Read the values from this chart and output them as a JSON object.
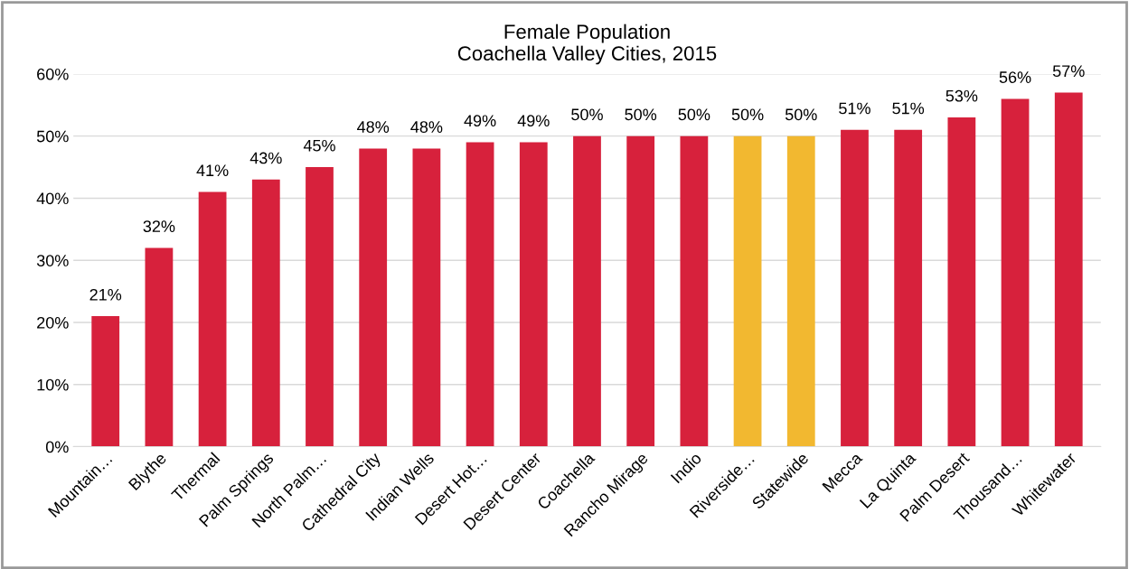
{
  "chart_data": {
    "type": "bar",
    "title": "Female Population\nCoachella Valley Cities, 2015",
    "categories": [
      "Mountain…",
      "Blythe",
      "Thermal",
      "Palm Springs",
      "North Palm…",
      "Cathedral City",
      "Indian Wells",
      "Desert Hot…",
      "Desert Center",
      "Coachella",
      "Rancho Mirage",
      "Indio",
      "Riverside…",
      "Statewide",
      "Mecca",
      "La Quinta",
      "Palm Desert",
      "Thousand…",
      "Whitewater"
    ],
    "values": [
      21,
      32,
      41,
      43,
      45,
      48,
      48,
      49,
      49,
      50,
      50,
      50,
      50,
      50,
      51,
      51,
      53,
      56,
      57
    ],
    "value_labels": [
      "21%",
      "32%",
      "41%",
      "43%",
      "45%",
      "48%",
      "48%",
      "49%",
      "49%",
      "50%",
      "50%",
      "50%",
      "50%",
      "50%",
      "51%",
      "51%",
      "53%",
      "56%",
      "57%"
    ],
    "colors": [
      "#d7213c",
      "#d7213c",
      "#d7213c",
      "#d7213c",
      "#d7213c",
      "#d7213c",
      "#d7213c",
      "#d7213c",
      "#d7213c",
      "#d7213c",
      "#d7213c",
      "#d7213c",
      "#f2b830",
      "#f2b830",
      "#d7213c",
      "#d7213c",
      "#d7213c",
      "#d7213c",
      "#d7213c"
    ],
    "ylim": [
      0,
      60
    ],
    "yticks": [
      {
        "value": 0,
        "label": "0%"
      },
      {
        "value": 10,
        "label": "10%"
      },
      {
        "value": 20,
        "label": "20%"
      },
      {
        "value": 30,
        "label": "30%"
      },
      {
        "value": 40,
        "label": "40%"
      },
      {
        "value": 50,
        "label": "50%"
      },
      {
        "value": 60,
        "label": "60%"
      }
    ],
    "grid": "y",
    "legend": false
  }
}
